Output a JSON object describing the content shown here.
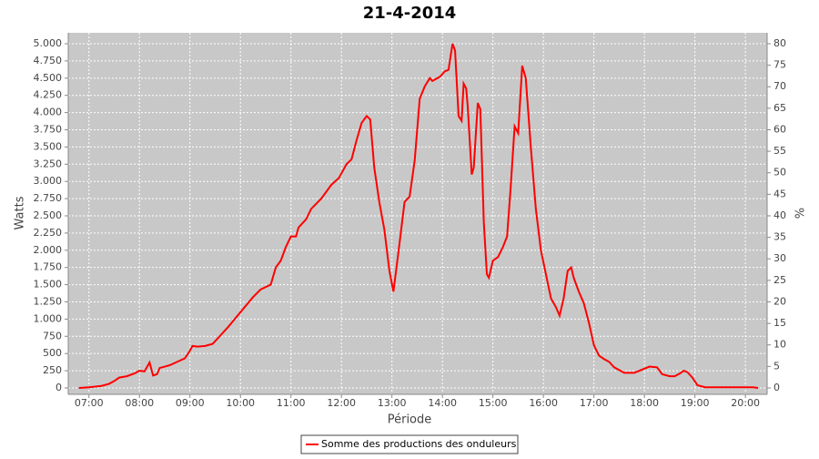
{
  "chart_data": {
    "type": "line",
    "title": "21-4-2014",
    "x_label": "Période",
    "y_label": "Watts",
    "y2_label": "%",
    "xlim": [
      6.59,
      20.43
    ],
    "xticks": [
      {
        "value": 7,
        "label": "07:00"
      },
      {
        "value": 8,
        "label": "08:00"
      },
      {
        "value": 9,
        "label": "09:00"
      },
      {
        "value": 10,
        "label": "10:00"
      },
      {
        "value": 11,
        "label": "11:00"
      },
      {
        "value": 12,
        "label": "12:00"
      },
      {
        "value": 13,
        "label": "13:00"
      },
      {
        "value": 14,
        "label": "14:00"
      },
      {
        "value": 15,
        "label": "15:00"
      },
      {
        "value": 16,
        "label": "16:00"
      },
      {
        "value": 17,
        "label": "17:00"
      },
      {
        "value": 18,
        "label": "18:00"
      },
      {
        "value": 19,
        "label": "19:00"
      },
      {
        "value": 20,
        "label": "20:00"
      }
    ],
    "ylim": [
      -93,
      5159
    ],
    "yticks": [
      0,
      250,
      500,
      750,
      {
        "value": 1000,
        "label": "1.000"
      },
      {
        "value": 1250,
        "label": "1.250"
      },
      {
        "value": 1500,
        "label": "1.500"
      },
      {
        "value": 1750,
        "label": "1.750"
      },
      {
        "value": 2000,
        "label": "2.000"
      },
      {
        "value": 2250,
        "label": "2.250"
      },
      {
        "value": 2500,
        "label": "2.500"
      },
      {
        "value": 2750,
        "label": "2.750"
      },
      {
        "value": 3000,
        "label": "3.000"
      },
      {
        "value": 3250,
        "label": "3.250"
      },
      {
        "value": 3500,
        "label": "3.500"
      },
      {
        "value": 3750,
        "label": "3.750"
      },
      {
        "value": 4000,
        "label": "4.000"
      },
      {
        "value": 4250,
        "label": "4.250"
      },
      {
        "value": 4500,
        "label": "4.500"
      },
      {
        "value": 4750,
        "label": "4.750"
      },
      {
        "value": 5000,
        "label": "5.000"
      }
    ],
    "y2lim": [
      -1.49,
      82.54
    ],
    "y2ticks": [
      0,
      5,
      10,
      15,
      20,
      25,
      30,
      35,
      40,
      45,
      50,
      55,
      60,
      65,
      70,
      75,
      80
    ],
    "grid": true,
    "x": [
      6.8,
      7.0,
      7.25,
      7.4,
      7.5,
      7.6,
      7.75,
      7.9,
      8.0,
      8.1,
      8.2,
      8.27,
      8.35,
      8.4,
      8.5,
      8.6,
      8.75,
      8.9,
      9.0,
      9.05,
      9.15,
      9.3,
      9.45,
      9.6,
      9.75,
      10.0,
      10.25,
      10.4,
      10.6,
      10.7,
      10.8,
      10.9,
      11.0,
      11.1,
      11.15,
      11.3,
      11.4,
      11.6,
      11.8,
      11.95,
      12.1,
      12.2,
      12.3,
      12.4,
      12.5,
      12.57,
      12.65,
      12.75,
      12.85,
      12.95,
      13.03,
      13.15,
      13.25,
      13.35,
      13.45,
      13.55,
      13.65,
      13.75,
      13.8,
      13.95,
      14.05,
      14.12,
      14.2,
      14.25,
      14.32,
      14.38,
      14.42,
      14.47,
      14.5,
      14.58,
      14.62,
      14.7,
      14.75,
      14.82,
      14.88,
      14.92,
      15.0,
      15.1,
      15.2,
      15.28,
      15.35,
      15.43,
      15.5,
      15.58,
      15.65,
      15.75,
      15.85,
      15.95,
      16.05,
      16.15,
      16.25,
      16.32,
      16.4,
      16.48,
      16.55,
      16.6,
      16.7,
      16.8,
      16.9,
      17.0,
      17.1,
      17.2,
      17.3,
      17.4,
      17.6,
      17.8,
      18.0,
      18.1,
      18.25,
      18.35,
      18.5,
      18.6,
      18.7,
      18.78,
      18.85,
      18.95,
      19.05,
      19.2,
      19.5,
      20.0,
      20.15,
      20.25
    ],
    "series": [
      {
        "name": "Somme des productions des onduleurs",
        "color": "#ff0000",
        "values": [
          0,
          10,
          30,
          60,
          100,
          150,
          170,
          210,
          250,
          240,
          370,
          180,
          200,
          290,
          310,
          330,
          380,
          430,
          540,
          610,
          600,
          610,
          640,
          760,
          880,
          1100,
          1320,
          1430,
          1500,
          1750,
          1850,
          2050,
          2200,
          2200,
          2330,
          2450,
          2600,
          2750,
          2950,
          3050,
          3250,
          3320,
          3600,
          3850,
          3950,
          3900,
          3200,
          2700,
          2300,
          1700,
          1400,
          2100,
          2700,
          2780,
          3300,
          4200,
          4380,
          4500,
          4460,
          4520,
          4600,
          4620,
          5000,
          4900,
          3950,
          3880,
          4420,
          4350,
          4100,
          3100,
          3200,
          4140,
          4050,
          2400,
          1650,
          1600,
          1850,
          1900,
          2050,
          2200,
          2900,
          3800,
          3700,
          4680,
          4500,
          3500,
          2600,
          2000,
          1650,
          1300,
          1170,
          1050,
          1300,
          1700,
          1750,
          1600,
          1400,
          1230,
          950,
          620,
          470,
          420,
          380,
          300,
          220,
          220,
          280,
          310,
          300,
          200,
          170,
          170,
          210,
          250,
          230,
          150,
          40,
          10,
          10,
          10,
          10,
          0
        ]
      }
    ]
  }
}
